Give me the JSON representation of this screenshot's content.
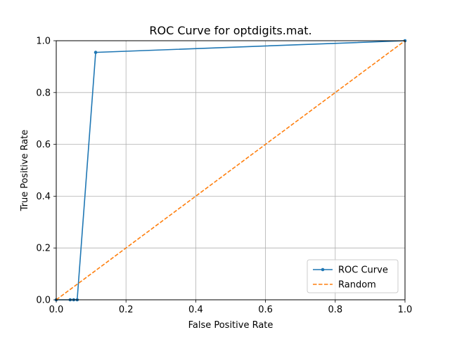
{
  "chart_data": {
    "type": "line",
    "title": "ROC Curve for optdigits.mat.",
    "xlabel": "False Positive Rate",
    "ylabel": "True Positive Rate",
    "xlim": [
      0,
      1
    ],
    "ylim": [
      0,
      1
    ],
    "grid": true,
    "legend_position": "lower-right",
    "xticks": [
      "0.0",
      "0.2",
      "0.4",
      "0.6",
      "0.8",
      "1.0"
    ],
    "yticks": [
      "0.0",
      "0.2",
      "0.4",
      "0.6",
      "0.8",
      "1.0"
    ],
    "series": [
      {
        "name": "ROC Curve",
        "style": "solid-with-markers",
        "color": "#1f77b4",
        "x": [
          0.0,
          0.04,
          0.05,
          0.06,
          0.113,
          1.0
        ],
        "y": [
          0.0,
          0.0,
          0.0,
          0.0,
          0.955,
          1.0
        ]
      },
      {
        "name": "Random",
        "style": "dashed",
        "color": "#ff7f0e",
        "x": [
          0.0,
          1.0
        ],
        "y": [
          0.0,
          1.0
        ]
      }
    ]
  }
}
